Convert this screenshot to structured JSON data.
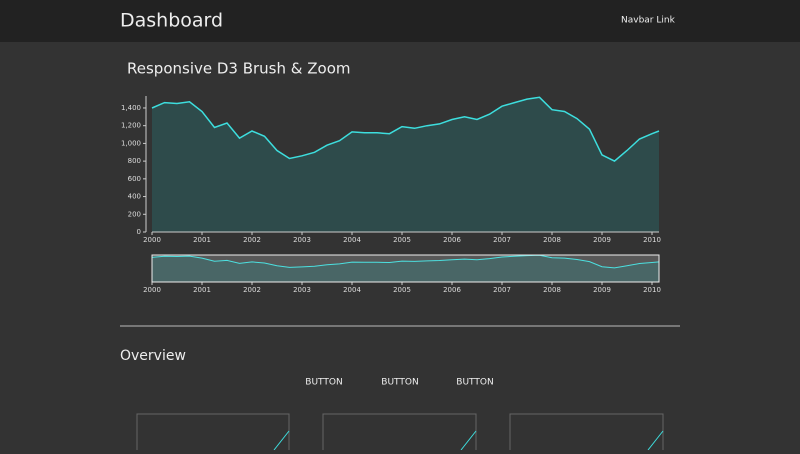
{
  "navbar": {
    "brand": "Dashboard",
    "link": "Navbar Link"
  },
  "heading": "Responsive D3 Brush & Zoom",
  "chart_data": {
    "type": "area",
    "color": "#3ddede",
    "fill": "#2e4b4b",
    "x": [
      2000,
      2000.25,
      2000.5,
      2000.75,
      2001,
      2001.25,
      2001.5,
      2001.75,
      2002,
      2002.25,
      2002.5,
      2002.75,
      2003,
      2003.25,
      2003.5,
      2003.75,
      2004,
      2004.25,
      2004.5,
      2004.75,
      2005,
      2005.25,
      2005.5,
      2005.75,
      2006,
      2006.25,
      2006.5,
      2006.75,
      2007,
      2007.25,
      2007.5,
      2007.75,
      2008,
      2008.25,
      2008.5,
      2008.75,
      2009,
      2009.25,
      2009.5,
      2009.75,
      2010,
      2010.14
    ],
    "values": [
      1400,
      1460,
      1450,
      1470,
      1360,
      1180,
      1230,
      1060,
      1140,
      1080,
      920,
      830,
      860,
      900,
      980,
      1030,
      1130,
      1120,
      1120,
      1110,
      1190,
      1170,
      1200,
      1220,
      1270,
      1300,
      1270,
      1330,
      1420,
      1460,
      1500,
      1520,
      1380,
      1360,
      1280,
      1160,
      870,
      800,
      920,
      1050,
      1110,
      1140
    ],
    "xlim": [
      2000,
      2010.14
    ],
    "ylim": [
      0,
      1535
    ],
    "xticks": [
      2000,
      2001,
      2002,
      2003,
      2004,
      2005,
      2006,
      2007,
      2008,
      2009,
      2010
    ],
    "yticks": [
      0,
      200,
      400,
      600,
      800,
      {
        "value": 1000,
        "label": "1,000"
      },
      {
        "value": 1200,
        "label": "1,200"
      },
      {
        "value": 1400,
        "label": "1,400"
      }
    ]
  },
  "overview": {
    "title": "Overview",
    "buttons": [
      "BUTTON",
      "BUTTON",
      "BUTTON"
    ]
  }
}
